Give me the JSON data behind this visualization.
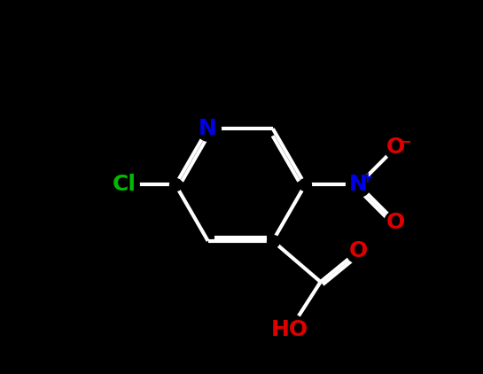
{
  "background_color": "#000000",
  "bond_color": "#ffffff",
  "bond_width": 3.0,
  "N_ring_label": {
    "text": "N",
    "color": "#0000ee"
  },
  "Cl_label": {
    "text": "Cl",
    "color": "#00bb00"
  },
  "NO2_N_label": {
    "text": "N",
    "color": "#0000ee"
  },
  "NO2_plus": {
    "text": "+",
    "color": "#0000ee"
  },
  "O_minus_label": {
    "text": "O",
    "color": "#dd0000"
  },
  "O_minus_sign": {
    "text": "−",
    "color": "#dd0000"
  },
  "O_cooh_double": {
    "text": "O",
    "color": "#dd0000"
  },
  "O_cooh_single": {
    "text": "O",
    "color": "#dd0000"
  },
  "HO_label": {
    "text": "HO",
    "color": "#dd0000"
  },
  "figsize": [
    5.45,
    4.22
  ],
  "dpi": 100
}
